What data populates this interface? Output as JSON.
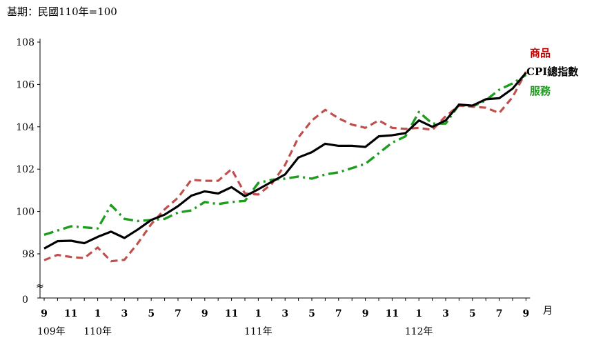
{
  "chart_data": {
    "type": "line",
    "base_note": "基期：民國110年=100",
    "x_unit_label": "月",
    "ylim": [
      98,
      108
    ],
    "y_axis_min_label": "0",
    "axis_break_symbol": "≈",
    "y_ticks": [
      "98",
      "100",
      "102",
      "104",
      "106",
      "108"
    ],
    "x_tick_months": [
      "9",
      "10",
      "11",
      "12",
      "1",
      "2",
      "3",
      "4",
      "5",
      "6",
      "7",
      "8",
      "9",
      "10",
      "11",
      "12",
      "1",
      "2",
      "3",
      "4",
      "5",
      "6",
      "7",
      "8",
      "9",
      "10",
      "11",
      "12",
      "1",
      "2",
      "3",
      "4",
      "5",
      "6",
      "7",
      "8",
      "9"
    ],
    "x_tick_labels": [
      "9",
      "11",
      "1",
      "3",
      "5",
      "7",
      "9",
      "11",
      "1",
      "3",
      "5",
      "7",
      "9",
      "11",
      "1",
      "3",
      "5",
      "7",
      "9"
    ],
    "year_labels": [
      {
        "label": "109年",
        "at_index": 0
      },
      {
        "label": "110年",
        "at_index": 4
      },
      {
        "label": "111年",
        "at_index": 16
      },
      {
        "label": "112年",
        "at_index": 28
      }
    ],
    "grid": false,
    "legend_placement": "right, at line ends",
    "series": [
      {
        "name": "商品",
        "color": "#c0504d",
        "style": "dashed",
        "values": [
          97.7,
          97.95,
          97.85,
          97.8,
          98.3,
          97.65,
          97.72,
          98.5,
          99.4,
          100.1,
          100.65,
          101.5,
          101.45,
          101.45,
          102.0,
          100.85,
          100.8,
          101.3,
          102.2,
          103.5,
          104.3,
          104.8,
          104.4,
          104.1,
          103.95,
          104.3,
          103.95,
          103.9,
          103.95,
          103.85,
          104.5,
          105.0,
          104.95,
          104.9,
          104.65,
          105.4,
          106.6
        ]
      },
      {
        "name": "CPI總指數",
        "color": "#000000",
        "style": "solid",
        "values": [
          98.25,
          98.6,
          98.62,
          98.5,
          98.8,
          99.05,
          98.75,
          99.15,
          99.6,
          99.85,
          100.25,
          100.75,
          100.95,
          100.85,
          101.15,
          100.72,
          101.05,
          101.4,
          101.75,
          102.55,
          102.8,
          103.2,
          103.1,
          103.1,
          103.05,
          103.55,
          103.6,
          103.7,
          104.3,
          104.0,
          104.3,
          105.05,
          105.0,
          105.3,
          105.35,
          105.8,
          106.55
        ]
      },
      {
        "name": "服務",
        "color": "#1e9c1e",
        "style": "dashdot",
        "values": [
          98.9,
          99.1,
          99.3,
          99.25,
          99.2,
          100.3,
          99.65,
          99.55,
          99.6,
          99.65,
          99.95,
          100.05,
          100.45,
          100.35,
          100.45,
          100.5,
          101.35,
          101.5,
          101.55,
          101.65,
          101.55,
          101.75,
          101.85,
          102.05,
          102.25,
          102.75,
          103.25,
          103.55,
          104.7,
          104.15,
          104.15,
          105.05,
          104.95,
          105.25,
          105.75,
          106.05,
          106.45
        ]
      }
    ]
  }
}
